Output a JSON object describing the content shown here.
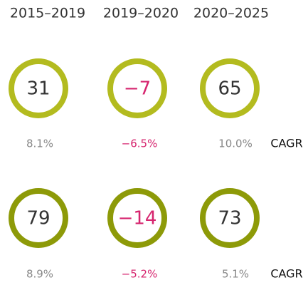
{
  "header": {
    "periods": [
      "2015–2019",
      "2019–2020",
      "2020–2025"
    ]
  },
  "rows": [
    {
      "values": [
        "31",
        "−7",
        "65"
      ],
      "cagr": [
        "8.1%",
        "−6.5%",
        "10.0%"
      ],
      "cagr_label": "CAGR"
    },
    {
      "values": [
        "79",
        "−14",
        "73"
      ],
      "cagr": [
        "8.9%",
        "−5.2%",
        "5.1%"
      ],
      "cagr_label": "CAGR"
    }
  ]
}
